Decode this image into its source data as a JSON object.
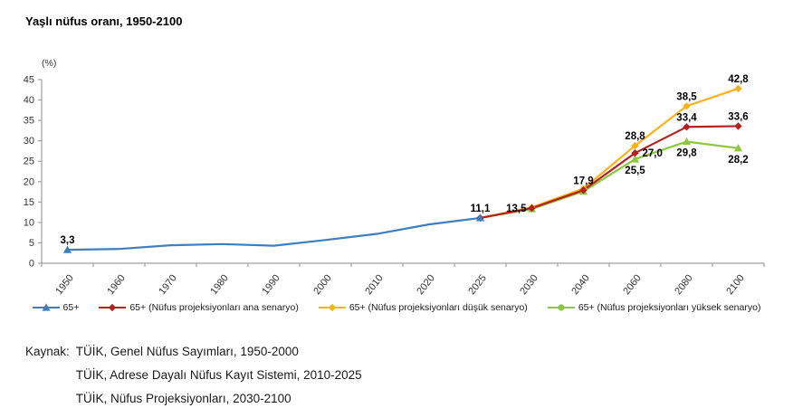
{
  "title": "Yaşlı nüfus oranı, 1950-2100",
  "chart_data": {
    "type": "line",
    "title": "Yaşlı nüfus oranı, 1950-2100",
    "unit_label": "(%)",
    "xlabel": "",
    "ylabel": "(%)",
    "ylim": [
      0,
      45
    ],
    "ytick_step": 5,
    "grid": false,
    "legend_position": "bottom",
    "categories": [
      "1950",
      "1960",
      "1970",
      "1980",
      "1990",
      "2000",
      "2010",
      "2020",
      "2025",
      "2030",
      "2040",
      "2060",
      "2080",
      "2100"
    ],
    "series": [
      {
        "name": "65+",
        "color": "#3E7EC1",
        "marker": "triangle",
        "x": [
          "1950",
          "1960",
          "1970",
          "1980",
          "1990",
          "2000",
          "2010",
          "2020",
          "2025"
        ],
        "values": [
          3.3,
          3.5,
          4.4,
          4.7,
          4.3,
          5.7,
          7.2,
          9.5,
          11.1
        ],
        "marker_at": [
          "1950",
          "2025"
        ],
        "labels": [
          {
            "x": "1950",
            "text": "3,3",
            "pos": "above"
          },
          {
            "x": "2025",
            "text": "11,1",
            "pos": "above"
          }
        ]
      },
      {
        "name": "65+ (Nüfus projeksiyonları ana senaryo)",
        "color": "#B22222",
        "marker": "diamond",
        "x": [
          "2025",
          "2030",
          "2040",
          "2060",
          "2080",
          "2100"
        ],
        "values": [
          11.1,
          13.5,
          17.9,
          27.0,
          33.4,
          33.6
        ],
        "labels": [
          {
            "x": "2030",
            "text": "13,5",
            "pos": "left"
          },
          {
            "x": "2040",
            "text": "17,9",
            "pos": "above"
          },
          {
            "x": "2060",
            "text": "27,0",
            "pos": "right"
          },
          {
            "x": "2080",
            "text": "33,4",
            "pos": "above"
          },
          {
            "x": "2100",
            "text": "33,6",
            "pos": "above"
          }
        ]
      },
      {
        "name": "65+ (Nüfus projeksiyonları düşük senaryo)",
        "color": "#FBB117",
        "marker": "diamond",
        "x": [
          "2025",
          "2030",
          "2040",
          "2060",
          "2080",
          "2100"
        ],
        "values": [
          11.1,
          13.7,
          18.3,
          28.8,
          38.5,
          42.8
        ],
        "labels": [
          {
            "x": "2060",
            "text": "28,8",
            "pos": "above"
          },
          {
            "x": "2080",
            "text": "38,5",
            "pos": "above"
          },
          {
            "x": "2100",
            "text": "42,8",
            "pos": "above"
          }
        ]
      },
      {
        "name": "65+ (Nüfus projeksiyonları yüksek senaryo)",
        "color": "#8DC63F",
        "marker": "triangle",
        "legend_marker": "circle",
        "x": [
          "2025",
          "2030",
          "2040",
          "2060",
          "2080",
          "2100"
        ],
        "values": [
          11.1,
          13.3,
          17.6,
          25.5,
          29.8,
          28.2
        ],
        "labels": [
          {
            "x": "2060",
            "text": "25,5",
            "pos": "below"
          },
          {
            "x": "2080",
            "text": "29,8",
            "pos": "below"
          },
          {
            "x": "2100",
            "text": "28,2",
            "pos": "below"
          }
        ]
      }
    ]
  },
  "source": {
    "label": "Kaynak:",
    "lines": [
      "TÜİK, Genel Nüfus Sayımları, 1950-2000",
      "TÜİK, Adrese Dayalı Nüfus Kayıt Sistemi, 2010-2025",
      "TÜİK, Nüfus Projeksiyonları, 2030-2100"
    ]
  }
}
